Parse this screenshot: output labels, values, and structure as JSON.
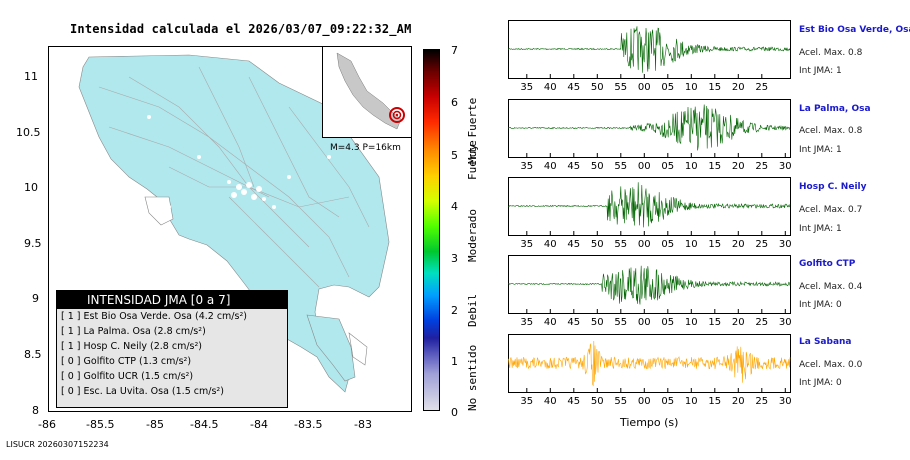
{
  "title": "Intensidad calculada el 2026/03/07_09:22:32_AM",
  "footer": "LISUCR 20260307152234",
  "map": {
    "y_ticks": [
      "11",
      "10.5",
      "10",
      "9.5",
      "9",
      "8.5",
      "8"
    ],
    "x_ticks": [
      "-86",
      "-85.5",
      "-85",
      "-84.5",
      "-84",
      "-83.5",
      "-83"
    ],
    "xlim": [
      -86,
      -82.5
    ],
    "ylim": [
      8,
      11.3
    ],
    "land_color": "#b0e8ee",
    "inset_label": "M=4.3 P=16km"
  },
  "legend": {
    "header": "INTENSIDAD JMA [0 a 7]",
    "items": [
      "[ 1 ]  Est Bio Osa Verde. Osa (4.2 cm/s²)",
      "[ 1 ]  La Palma. Osa (2.8 cm/s²)",
      "[ 1 ]  Hosp C. Neily (2.8 cm/s²)",
      "[ 0 ]  Golfito CTP (1.3 cm/s²)",
      "[ 0 ]  Golfito UCR (1.5 cm/s²)",
      "[ 0 ]  Esc. La Uvita. Osa (1.5 cm/s²)"
    ]
  },
  "colorbar": {
    "ticks": [
      "7",
      "6",
      "5",
      "4",
      "3",
      "2",
      "1",
      "0"
    ],
    "levels": [
      "Muy Fuerte",
      "Fuerte",
      "Moderado",
      "Debil",
      "No sentido"
    ]
  },
  "chart_data": [
    {
      "type": "line",
      "name": "Est Bio Osa Verde, Osa",
      "acel_label": "Acel. Max. 0.8",
      "int_label": "Int JMA: 1",
      "color": "#006400",
      "x_ticks": [
        "35",
        "40",
        "45",
        "50",
        "55",
        "00",
        "05",
        "10",
        "15",
        "20",
        "25"
      ],
      "signal_onset_s": 55,
      "peak_at_s": 60
    },
    {
      "type": "line",
      "name": "La Palma, Osa",
      "acel_label": "Acel. Max. 0.8",
      "int_label": "Int JMA: 1",
      "color": "#006400",
      "x_ticks": [
        "35",
        "40",
        "45",
        "50",
        "55",
        "00",
        "05",
        "10",
        "15",
        "20",
        "25",
        "30"
      ],
      "signal_onset_s": 57,
      "peak_at_s": 72
    },
    {
      "type": "line",
      "name": "Hosp C. Neily",
      "acel_label": "Acel. Max. 0.7",
      "int_label": "Int JMA: 1",
      "color": "#006400",
      "x_ticks": [
        "35",
        "40",
        "45",
        "50",
        "55",
        "00",
        "05",
        "10",
        "15",
        "20",
        "25",
        "30"
      ],
      "signal_onset_s": 52,
      "peak_at_s": 58
    },
    {
      "type": "line",
      "name": "Golfito CTP",
      "acel_label": "Acel. Max. 0.4",
      "int_label": "Int JMA: 0",
      "color": "#006400",
      "x_ticks": [
        "35",
        "40",
        "45",
        "50",
        "55",
        "00",
        "05",
        "10",
        "15",
        "20",
        "25",
        "30"
      ],
      "signal_onset_s": 51,
      "peak_at_s": 58
    },
    {
      "type": "line",
      "name": "La Sabana",
      "acel_label": "Acel. Max. 0.0",
      "int_label": "Int JMA: 0",
      "color": "#ffa500",
      "x_ticks": [
        "35",
        "40",
        "45",
        "50",
        "55",
        "00",
        "05",
        "10",
        "15",
        "20",
        "25",
        "30"
      ],
      "signal_onset_s": 31,
      "peak_at_s": 80
    }
  ],
  "x_axis_label": "Tiempo (s)"
}
